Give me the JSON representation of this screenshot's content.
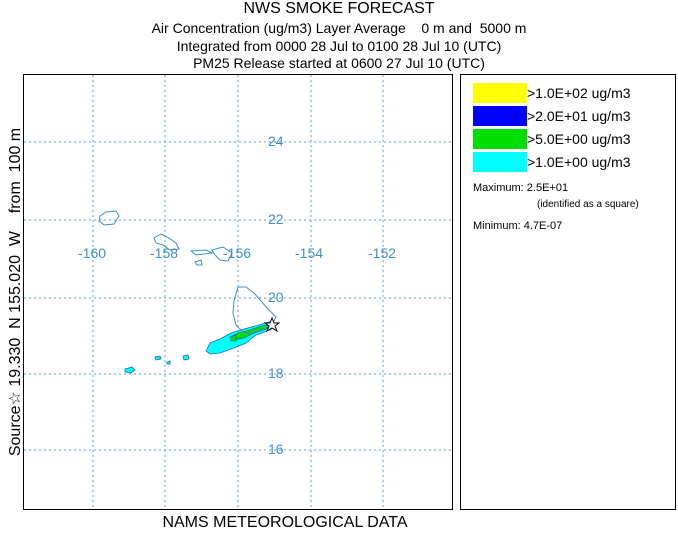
{
  "header": {
    "title": "NWS SMOKE FORECAST",
    "line1": "Air Concentration (ug/m3) Layer Average    0 m and  5000 m",
    "line2": "Integrated from 0000 28 Jul to 0100 28 Jul 10 (UTC)",
    "line3": "PM25 Release started at 0600 27 Jul 10 (UTC)"
  },
  "side_label": "Source☆ 19.330  N 155.020  W    from  100 m",
  "footer": "NAMS METEOROLOGICAL DATA",
  "map": {
    "lon_labels": [
      "-160",
      "-158",
      "-156",
      "-154",
      "-152"
    ],
    "lat_labels": [
      "24",
      "22",
      "20",
      "18",
      "16"
    ],
    "grid_color": "#5aa0d2",
    "coast_color": "#3f8fc4",
    "source_marker": "star-icon"
  },
  "legend": {
    "items": [
      {
        "label": ">1.0E+02 ug/m3",
        "color": "#ffff00"
      },
      {
        "label": ">2.0E+01 ug/m3",
        "color": "#0000ff"
      },
      {
        "label": ">5.0E+00 ug/m3",
        "color": "#00dd00"
      },
      {
        "label": ">1.0E+00 ug/m3",
        "color": "#00ffff"
      }
    ],
    "maximum_label": "Maximum:",
    "maximum_value": "2.5E+01",
    "maximum_note": "(identified as a square)",
    "minimum_label": "Minimum:",
    "minimum_value": "4.7E-07"
  }
}
